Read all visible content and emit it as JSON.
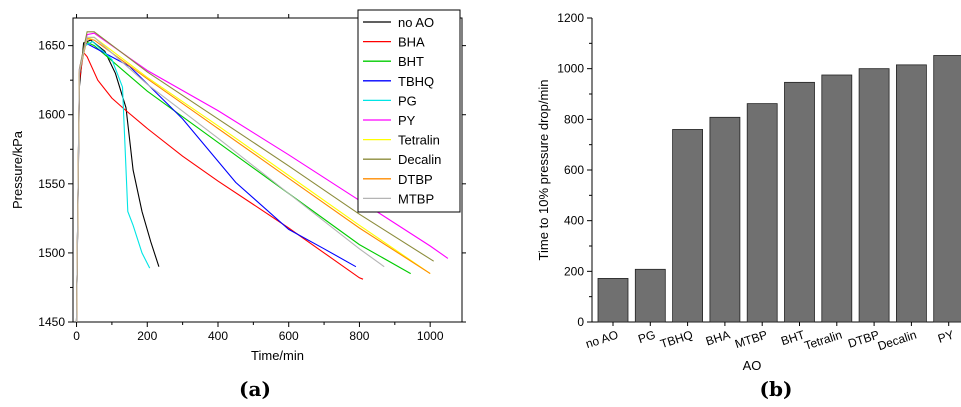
{
  "captions": {
    "a": "(a)",
    "b": "(b)"
  },
  "chart_data": [
    {
      "type": "line",
      "xlabel": "Time/min",
      "ylabel": "Pressure/kPa",
      "xlim": [
        -10,
        1090
      ],
      "ylim": [
        1450,
        1670
      ],
      "xticks": [
        0,
        200,
        400,
        600,
        800,
        1000
      ],
      "yticks": [
        1450,
        1500,
        1550,
        1600,
        1650
      ],
      "legend_position": "top-right",
      "series": [
        {
          "name": "no AO",
          "color": "#000000",
          "x": [
            0,
            8,
            20,
            40,
            80,
            110,
            140,
            160,
            185,
            210,
            233
          ],
          "y": [
            1450,
            1620,
            1652,
            1654,
            1646,
            1630,
            1605,
            1560,
            1530,
            1508,
            1490
          ]
        },
        {
          "name": "BHA",
          "color": "#ff0000",
          "x": [
            0,
            8,
            20,
            30,
            60,
            100,
            140,
            200,
            300,
            400,
            500,
            600,
            700,
            800,
            810
          ],
          "y": [
            1450,
            1625,
            1645,
            1642,
            1625,
            1612,
            1603,
            1590,
            1570,
            1552,
            1535,
            1518,
            1500,
            1482,
            1481
          ]
        },
        {
          "name": "BHT",
          "color": "#00cc00",
          "x": [
            0,
            8,
            25,
            50,
            200,
            400,
            600,
            800,
            945
          ],
          "y": [
            1450,
            1630,
            1653,
            1650,
            1617,
            1580,
            1543,
            1506,
            1485
          ]
        },
        {
          "name": "TBHQ",
          "color": "#0000ff",
          "x": [
            0,
            8,
            25,
            40,
            150,
            300,
            450,
            600,
            700,
            790
          ],
          "y": [
            1450,
            1630,
            1652,
            1650,
            1635,
            1597,
            1551,
            1517,
            1503,
            1490
          ]
        },
        {
          "name": "PG",
          "color": "#00e5e5",
          "x": [
            0,
            8,
            25,
            45,
            100,
            130,
            145,
            160,
            185,
            207
          ],
          "y": [
            1450,
            1630,
            1650,
            1653,
            1640,
            1620,
            1530,
            1520,
            1500,
            1489
          ]
        },
        {
          "name": "PY",
          "color": "#ff00ff",
          "x": [
            0,
            8,
            30,
            50,
            200,
            400,
            600,
            800,
            1000,
            1050
          ],
          "y": [
            1450,
            1633,
            1658,
            1659,
            1632,
            1603,
            1571,
            1538,
            1505,
            1496
          ]
        },
        {
          "name": "Tetralin",
          "color": "#ffff00",
          "x": [
            0,
            8,
            30,
            50,
            200,
            400,
            600,
            800,
            1000
          ],
          "y": [
            1450,
            1632,
            1655,
            1656,
            1627,
            1592,
            1556,
            1520,
            1485
          ]
        },
        {
          "name": "Decalin",
          "color": "#8c8c3c",
          "x": [
            0,
            8,
            30,
            50,
            200,
            400,
            600,
            800,
            1010
          ],
          "y": [
            1450,
            1633,
            1660,
            1660,
            1631,
            1597,
            1563,
            1528,
            1494
          ]
        },
        {
          "name": "DTBP",
          "color": "#ff8c00",
          "x": [
            0,
            8,
            30,
            50,
            200,
            400,
            600,
            800,
            1000
          ],
          "y": [
            1450,
            1631,
            1655,
            1654,
            1626,
            1590,
            1554,
            1518,
            1485
          ]
        },
        {
          "name": "MTBP",
          "color": "#b4b4b4",
          "x": [
            0,
            8,
            30,
            50,
            200,
            400,
            600,
            800,
            870
          ],
          "y": [
            1450,
            1632,
            1656,
            1656,
            1622,
            1583,
            1543,
            1503,
            1490
          ]
        }
      ]
    },
    {
      "type": "bar",
      "xlabel": "AO",
      "ylabel": "Time to 10% pressure drop/min",
      "ylim": [
        0,
        1200
      ],
      "yticks": [
        0,
        200,
        400,
        600,
        800,
        1000,
        1200
      ],
      "categories": [
        "no AO",
        "PG",
        "TBHQ",
        "BHA",
        "MTBP",
        "BHT",
        "Tetralin",
        "DTBP",
        "Decalin",
        "PY"
      ],
      "values": [
        172,
        208,
        760,
        808,
        862,
        946,
        975,
        1000,
        1015,
        1052
      ],
      "bar_color": "#707070",
      "grid": false
    }
  ]
}
